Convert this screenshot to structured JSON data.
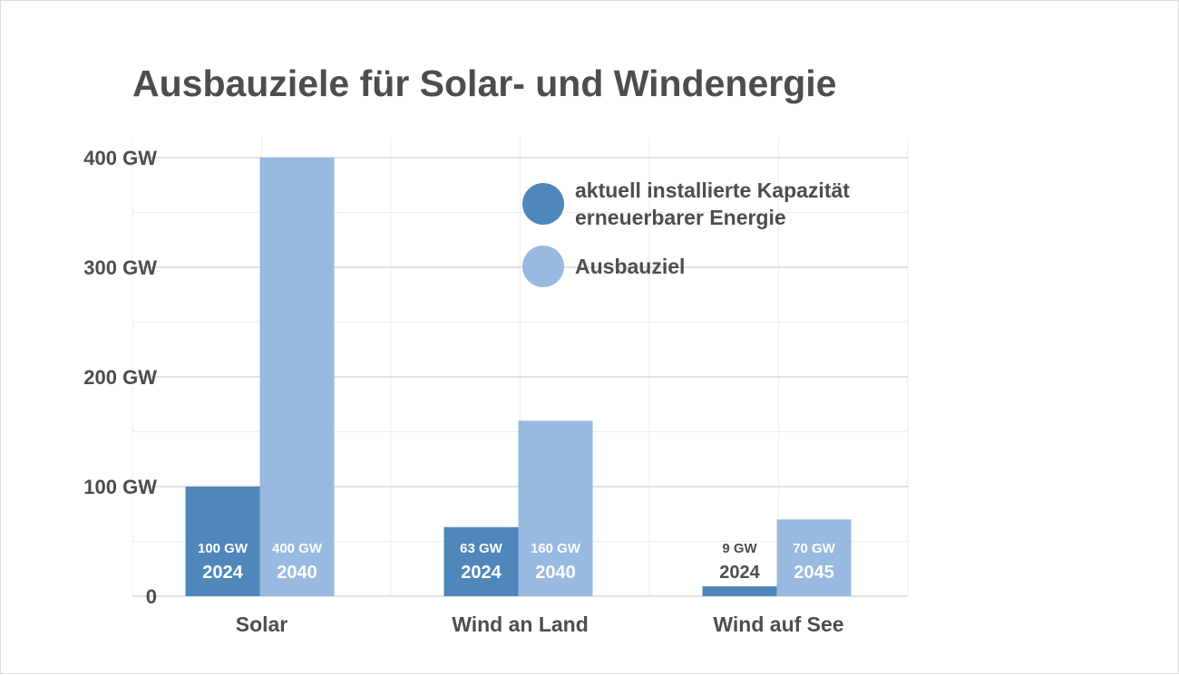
{
  "title": "Ausbauziele für Solar- und Windenergie",
  "colors": {
    "current": "#4f87bb",
    "target": "#98b9e0",
    "text": "#4d4d4d",
    "grid_major": "#d9d9d9",
    "grid_minor": "#eeeeee"
  },
  "legend": {
    "current_label": "aktuell installierte Kapazität erneuerbarer Energie",
    "target_label": "Ausbauziel"
  },
  "chart_data": {
    "type": "bar",
    "title": "Ausbauziele für Solar- und Windenergie",
    "categories": [
      "Solar",
      "Wind an Land",
      "Wind auf See"
    ],
    "series": [
      {
        "name": "aktuell installierte Kapazität erneuerbarer Energie",
        "values": [
          100,
          63,
          9
        ],
        "value_labels": [
          "100 GW",
          "63 GW",
          "9 GW"
        ],
        "year_labels": [
          "2024",
          "2024",
          "2024"
        ]
      },
      {
        "name": "Ausbauziel",
        "values": [
          400,
          160,
          70
        ],
        "value_labels": [
          "400 GW",
          "160 GW",
          "70 GW"
        ],
        "year_labels": [
          "2040",
          "2040",
          "2045"
        ]
      }
    ],
    "yticks": [
      0,
      100,
      200,
      300,
      400
    ],
    "ytick_labels": [
      "0",
      "100 GW",
      "200 GW",
      "300 GW",
      "400 GW"
    ],
    "ylim": [
      0,
      400
    ],
    "grid": true,
    "legend_position": "top-right"
  }
}
